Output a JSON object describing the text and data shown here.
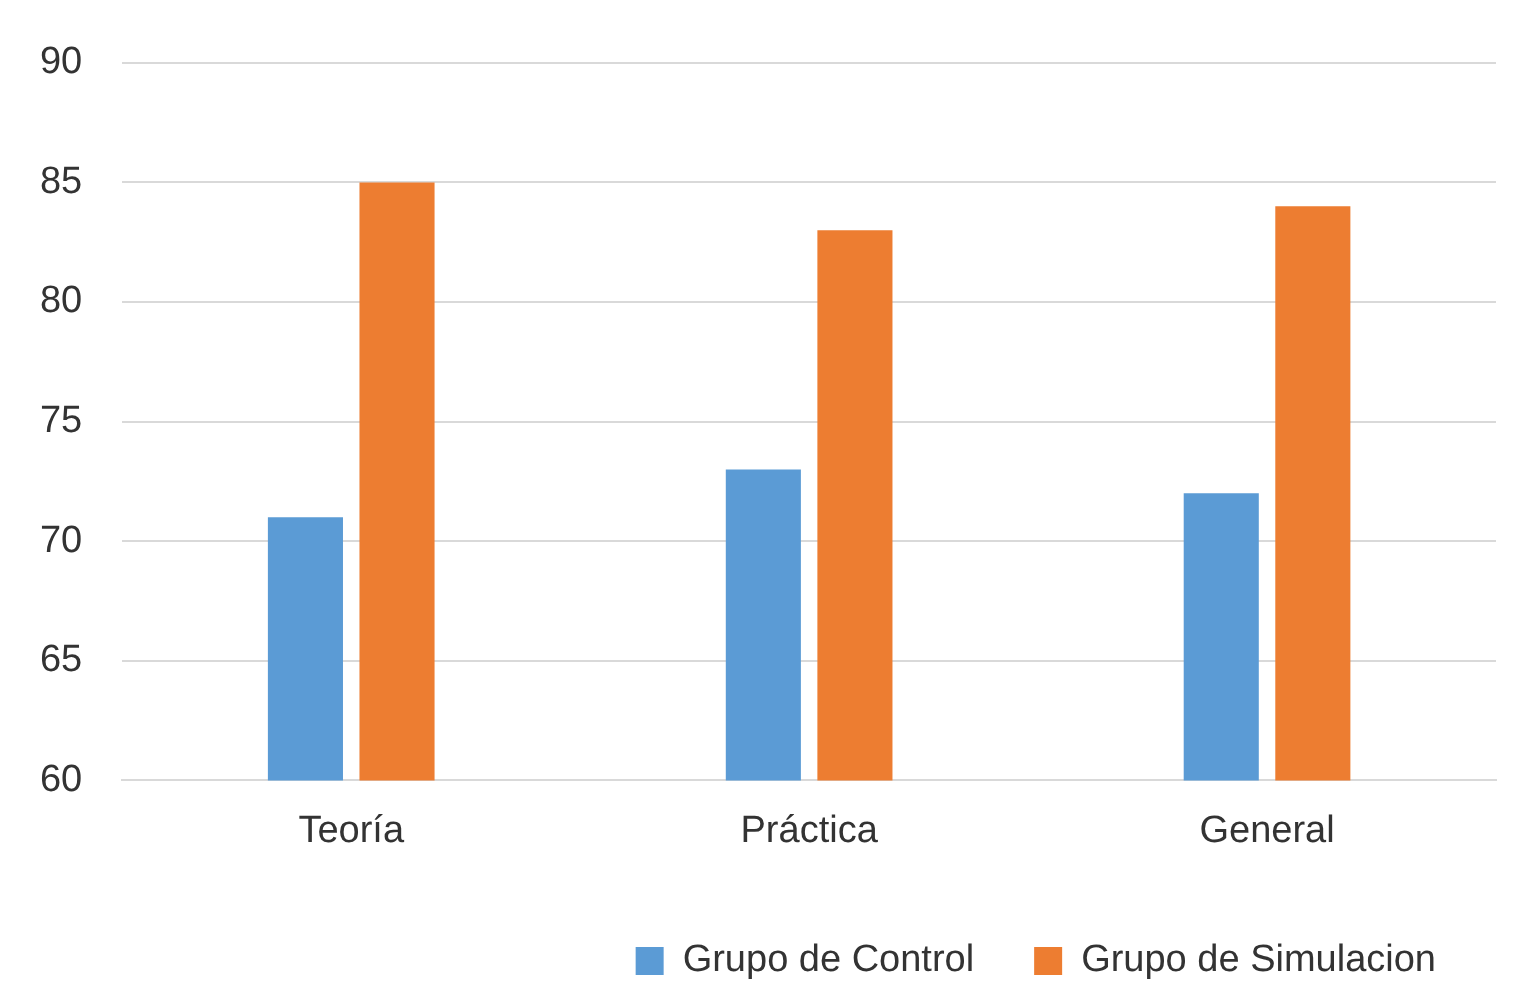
{
  "chart_data": {
    "type": "bar",
    "categories": [
      "Teoría",
      "Práctica",
      "General"
    ],
    "series": [
      {
        "name": "Grupo de Control",
        "color": "#5b9bd5",
        "values": [
          71,
          73,
          72
        ]
      },
      {
        "name": "Grupo de Simulacion",
        "color": "#ed7d31",
        "values": [
          85,
          83,
          84
        ]
      }
    ],
    "ylim": [
      60,
      90
    ],
    "yticks": [
      60,
      65,
      70,
      75,
      80,
      85,
      90
    ],
    "grid": "y",
    "legend": "bottom"
  }
}
